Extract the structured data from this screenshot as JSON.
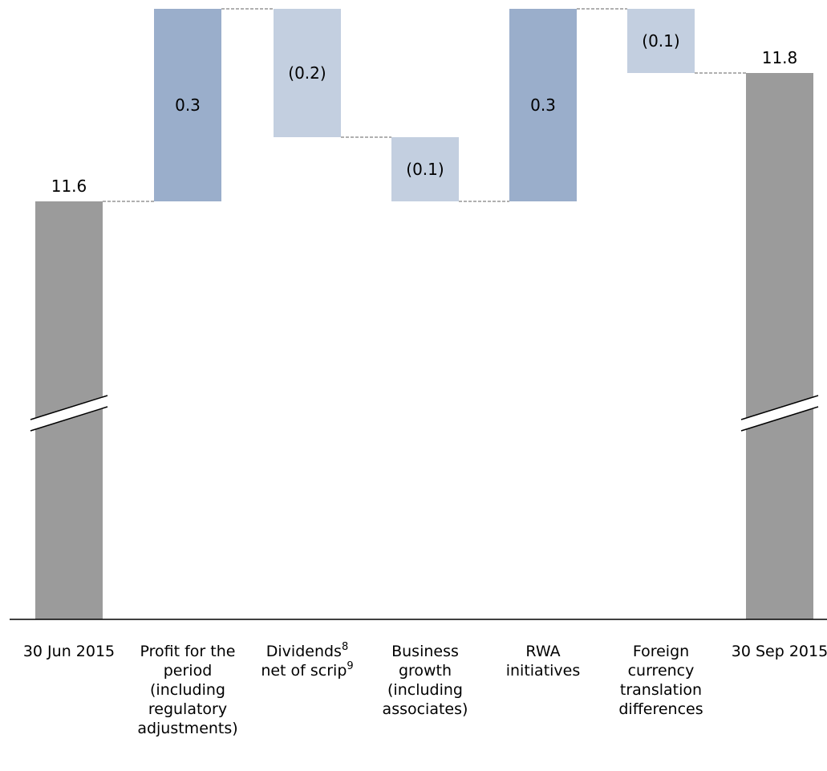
{
  "chart_data": {
    "type": "waterfall",
    "title": "",
    "xlabel": "",
    "ylabel": "",
    "axis_break": true,
    "grid": false,
    "legend": "none",
    "colors": {
      "total": "#9b9b9b",
      "increase": "#9aaecb",
      "decrease": "#c3cfe0",
      "connector": "#808080",
      "axis": "#000000"
    },
    "bars": [
      {
        "kind": "total",
        "value": 11.6,
        "label": "11.6",
        "category": [
          "30 Jun 2015"
        ]
      },
      {
        "kind": "delta",
        "value": 0.3,
        "label": "0.3",
        "category": [
          "Profit for the",
          "period",
          "(including",
          "regulatory",
          "adjustments)"
        ]
      },
      {
        "kind": "delta",
        "value": -0.2,
        "label": "(0.2)",
        "category": [
          {
            "text": "Dividends",
            "sup": "8"
          },
          {
            "text": "net of scrip",
            "sup": "9"
          }
        ]
      },
      {
        "kind": "delta",
        "value": -0.1,
        "label": "(0.1)",
        "category": [
          "Business",
          "growth",
          "(including",
          "associates)"
        ]
      },
      {
        "kind": "delta",
        "value": 0.3,
        "label": "0.3",
        "category": [
          "RWA",
          "initiatives"
        ]
      },
      {
        "kind": "delta",
        "value": -0.1,
        "label": "(0.1)",
        "category": [
          "Foreign",
          "currency",
          "translation",
          "differences"
        ]
      },
      {
        "kind": "total",
        "value": 11.8,
        "label": "11.8",
        "category": [
          "30 Sep 2015"
        ]
      }
    ]
  }
}
